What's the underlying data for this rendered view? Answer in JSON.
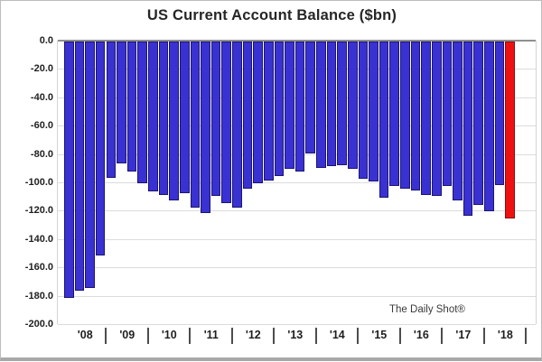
{
  "title": "US Current Account Balance ($bn)",
  "watermark": "The Daily Shot®",
  "colors": {
    "bar_blue": "#3a31d2",
    "bar_blue_border": "#1c1570",
    "bar_red": "#ee1111",
    "bar_red_border": "#8a0f0f",
    "gridline": "#dcdcdc",
    "zero_line": "#8f8f8f",
    "axis_text": "#1f1f1f"
  },
  "y_axis": {
    "tick_labels": [
      "0.0",
      "-20.0",
      "-40.0",
      "-60.0",
      "-80.0",
      "-100.0",
      "-120.0",
      "-140.0",
      "-160.0",
      "-180.0",
      "-200.0"
    ],
    "min": -200,
    "max": 0,
    "step": 20
  },
  "x_axis": {
    "year_labels": [
      "'08",
      "'09",
      "'10",
      "'11",
      "'12",
      "'13",
      "'14",
      "'15",
      "'16",
      "'17",
      "'18"
    ]
  },
  "chart_data": {
    "type": "bar",
    "title": "US Current Account Balance ($bn)",
    "unit": "$bn",
    "ylim": [
      -200,
      0
    ],
    "grid": "horizontal",
    "legend": "none",
    "x": [
      "2008 Q1",
      "2008 Q2",
      "2008 Q3",
      "2008 Q4",
      "2009 Q1",
      "2009 Q2",
      "2009 Q3",
      "2009 Q4",
      "2010 Q1",
      "2010 Q2",
      "2010 Q3",
      "2010 Q4",
      "2011 Q1",
      "2011 Q2",
      "2011 Q3",
      "2011 Q4",
      "2012 Q1",
      "2012 Q2",
      "2012 Q3",
      "2012 Q4",
      "2013 Q1",
      "2013 Q2",
      "2013 Q3",
      "2013 Q4",
      "2014 Q1",
      "2014 Q2",
      "2014 Q3",
      "2014 Q4",
      "2015 Q1",
      "2015 Q2",
      "2015 Q3",
      "2015 Q4",
      "2016 Q1",
      "2016 Q2",
      "2016 Q3",
      "2016 Q4",
      "2017 Q1",
      "2017 Q2",
      "2017 Q3",
      "2017 Q4",
      "2018 Q1",
      "2018 Q2",
      "2018 Q3"
    ],
    "values": [
      -181,
      -176,
      -174,
      -151,
      -96,
      -86,
      -92,
      -100,
      -106,
      -108,
      -112,
      -107,
      -117,
      -121,
      -109,
      -114,
      -117,
      -104,
      -100,
      -98,
      -95,
      -90,
      -92,
      -79,
      -89,
      -88,
      -87,
      -90,
      -97,
      -99,
      -110,
      -102,
      -104,
      -105,
      -108,
      -109,
      -102,
      -112,
      -123,
      -115,
      -120,
      -101,
      -125
    ],
    "highlight_index": 42,
    "highlight_color": "#ee1111",
    "bar_color": "#3a31d2"
  }
}
